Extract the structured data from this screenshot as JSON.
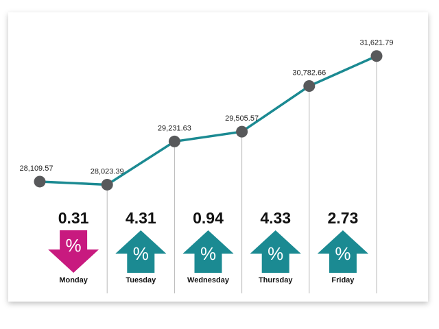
{
  "chart_data": [
    {
      "type": "line",
      "categories": [
        null,
        null,
        null,
        null,
        null,
        null
      ],
      "values": [
        28109.57,
        28023.39,
        29231.63,
        29505.57,
        30782.66,
        31621.79
      ],
      "value_labels": [
        "28,109.57",
        "28,023.39",
        "29,231.63",
        "29,505.57",
        "30,782.66",
        "31,621.79"
      ],
      "color": "#1b8a92",
      "marker_color": "#58595b",
      "ylim": [
        26000,
        32000
      ]
    },
    {
      "type": "arrows",
      "categories": [
        "Monday",
        "Tuesday",
        "Wednesday",
        "Thursday",
        "Friday"
      ],
      "values": [
        0.31,
        4.31,
        0.94,
        4.33,
        2.73
      ],
      "directions": [
        "down",
        "up",
        "up",
        "up",
        "up"
      ],
      "colors": [
        "#c81a7f",
        "#1b8a92",
        "#1b8a92",
        "#1b8a92",
        "#1b8a92"
      ],
      "symbol": "%"
    }
  ]
}
